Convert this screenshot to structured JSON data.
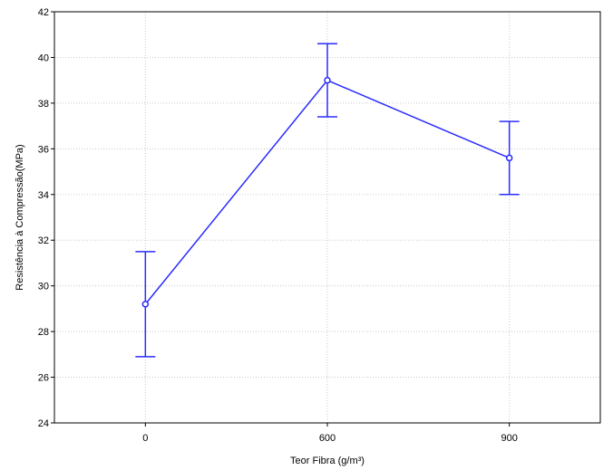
{
  "chart_data": {
    "type": "line",
    "title": "",
    "xlabel": "Teor Fibra (g/m³)",
    "ylabel": "Resistência à Compressão(MPa)",
    "categories": [
      "0",
      "600",
      "900"
    ],
    "series": [
      {
        "values": [
          29.2,
          39.0,
          35.6
        ],
        "error_low": [
          26.9,
          37.4,
          34.0
        ],
        "error_high": [
          31.5,
          40.6,
          37.2
        ],
        "color": "#2b2bff"
      }
    ],
    "ylim": [
      24,
      42
    ],
    "yticks": [
      "24",
      "26",
      "28",
      "30",
      "32",
      "34",
      "36",
      "38",
      "40",
      "42"
    ],
    "grid": true,
    "legend": "none"
  }
}
